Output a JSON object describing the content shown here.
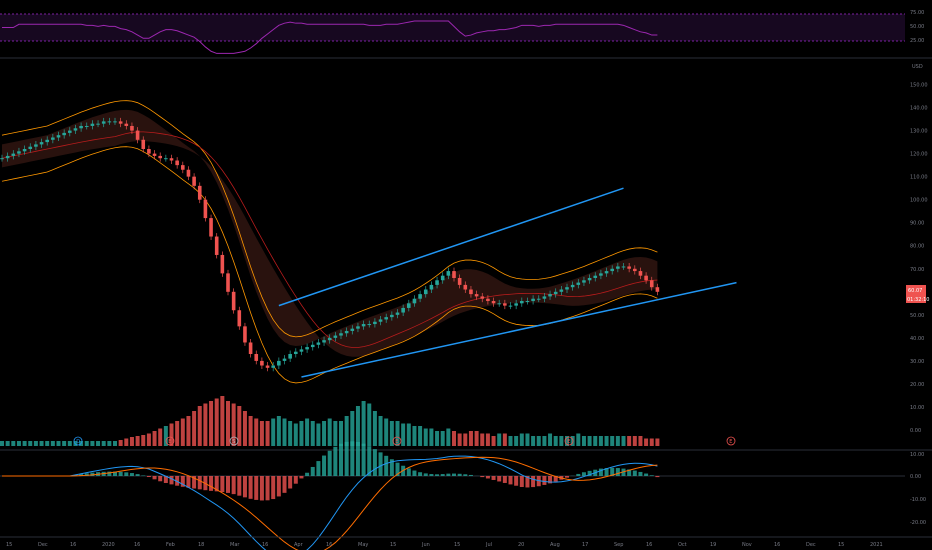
{
  "theme": {
    "background": "#000000",
    "up_color": "#26a69a",
    "down_color": "#ef5350",
    "rsi_color": "#9c27b0",
    "trendline_color": "#2196f3",
    "ma_long_color": "#b71c1c",
    "bollinger_color": "#ff9800",
    "macd_line_color": "#2196f3",
    "signal_line_color": "#ff6d00"
  },
  "rsi_panel": {
    "ticks": [
      "75.00",
      "50.00",
      "25.00"
    ]
  },
  "price_panel": {
    "currency": "USD",
    "ticks": [
      "150.00",
      "140.00",
      "130.00",
      "120.00",
      "110.00",
      "100.00",
      "90.00",
      "80.00",
      "70.00",
      "60.00",
      "50.00",
      "40.00",
      "30.00",
      "20.00",
      "10.00",
      "0.00"
    ],
    "last_price": "60.07",
    "countdown": "01:32:10"
  },
  "event_markers": [
    {
      "label": "D",
      "type": "dividend"
    },
    {
      "label": "E",
      "type": "earnings"
    },
    {
      "label": "S",
      "type": "split"
    },
    {
      "label": "E",
      "type": "earnings"
    },
    {
      "label": "E",
      "type": "earnings"
    },
    {
      "label": "E",
      "type": "earnings"
    }
  ],
  "macd_panel": {
    "ticks": [
      "10.00",
      "0.00",
      "-10.00",
      "-20.00"
    ]
  },
  "time_axis": {
    "ticks": [
      "15",
      "Dec",
      "16",
      "2020",
      "16",
      "Feb",
      "18",
      "Mar",
      "16",
      "Apr",
      "16",
      "May",
      "15",
      "Jun",
      "15",
      "Jul",
      "20",
      "Aug",
      "17",
      "Sep",
      "16",
      "Oct",
      "19",
      "Nov",
      "16",
      "Dec",
      "15",
      "2021"
    ]
  },
  "chart_data": {
    "type": "candlestick",
    "title": "",
    "ylabel": "USD",
    "ylim": [
      0,
      155
    ],
    "price_series_close": [
      118,
      119,
      120,
      121,
      122,
      123,
      124,
      125,
      126,
      127,
      128,
      129,
      130,
      131,
      132,
      132,
      133,
      133,
      134,
      134,
      134,
      133,
      132,
      130,
      126,
      122,
      120,
      119,
      118,
      118,
      117,
      115,
      113,
      110,
      106,
      100,
      92,
      84,
      76,
      68,
      60,
      52,
      45,
      38,
      33,
      30,
      28,
      27,
      28,
      30,
      31,
      33,
      34,
      35,
      36,
      37,
      38,
      39,
      40,
      41,
      42,
      43,
      44,
      45,
      46,
      46,
      47,
      48,
      49,
      50,
      51,
      53,
      55,
      57,
      59,
      61,
      63,
      65,
      67,
      69,
      66,
      63,
      61,
      59,
      58,
      57,
      56,
      55,
      55,
      54,
      54,
      55,
      56,
      56,
      57,
      57,
      58,
      59,
      60,
      61,
      62,
      63,
      64,
      65,
      66,
      67,
      68,
      69,
      70,
      71,
      71,
      70,
      69,
      67,
      65,
      62,
      60
    ],
    "volume_relative": [
      0.1,
      0.1,
      0.1,
      0.1,
      0.1,
      0.1,
      0.1,
      0.1,
      0.1,
      0.1,
      0.1,
      0.1,
      0.1,
      0.1,
      0.1,
      0.1,
      0.1,
      0.1,
      0.1,
      0.1,
      0.1,
      0.12,
      0.15,
      0.18,
      0.2,
      0.22,
      0.25,
      0.3,
      0.35,
      0.4,
      0.45,
      0.5,
      0.55,
      0.6,
      0.7,
      0.8,
      0.85,
      0.9,
      0.95,
      1.0,
      0.9,
      0.85,
      0.8,
      0.7,
      0.6,
      0.55,
      0.5,
      0.5,
      0.55,
      0.6,
      0.55,
      0.5,
      0.45,
      0.5,
      0.55,
      0.5,
      0.45,
      0.5,
      0.55,
      0.5,
      0.5,
      0.6,
      0.7,
      0.8,
      0.9,
      0.85,
      0.7,
      0.6,
      0.55,
      0.5,
      0.5,
      0.45,
      0.45,
      0.4,
      0.4,
      0.35,
      0.35,
      0.3,
      0.3,
      0.35,
      0.3,
      0.25,
      0.25,
      0.3,
      0.3,
      0.25,
      0.25,
      0.2,
      0.25,
      0.25,
      0.2,
      0.2,
      0.25,
      0.25,
      0.2,
      0.2,
      0.2,
      0.25,
      0.2,
      0.2,
      0.2,
      0.2,
      0.25,
      0.2,
      0.2,
      0.2,
      0.2,
      0.2,
      0.2,
      0.2,
      0.2,
      0.2,
      0.2,
      0.2,
      0.15,
      0.15,
      0.15
    ],
    "trendlines": [
      {
        "x0_index": 49,
        "y0": 54,
        "x1_index": 110,
        "y1": 105,
        "label": ""
      },
      {
        "x0_index": 53,
        "y0": 23,
        "x1_index": 130,
        "y1": 64,
        "label": ""
      }
    ],
    "rsi_range": [
      0,
      100
    ],
    "macd_range": [
      -25,
      10
    ],
    "grid": false,
    "legend": "none"
  }
}
